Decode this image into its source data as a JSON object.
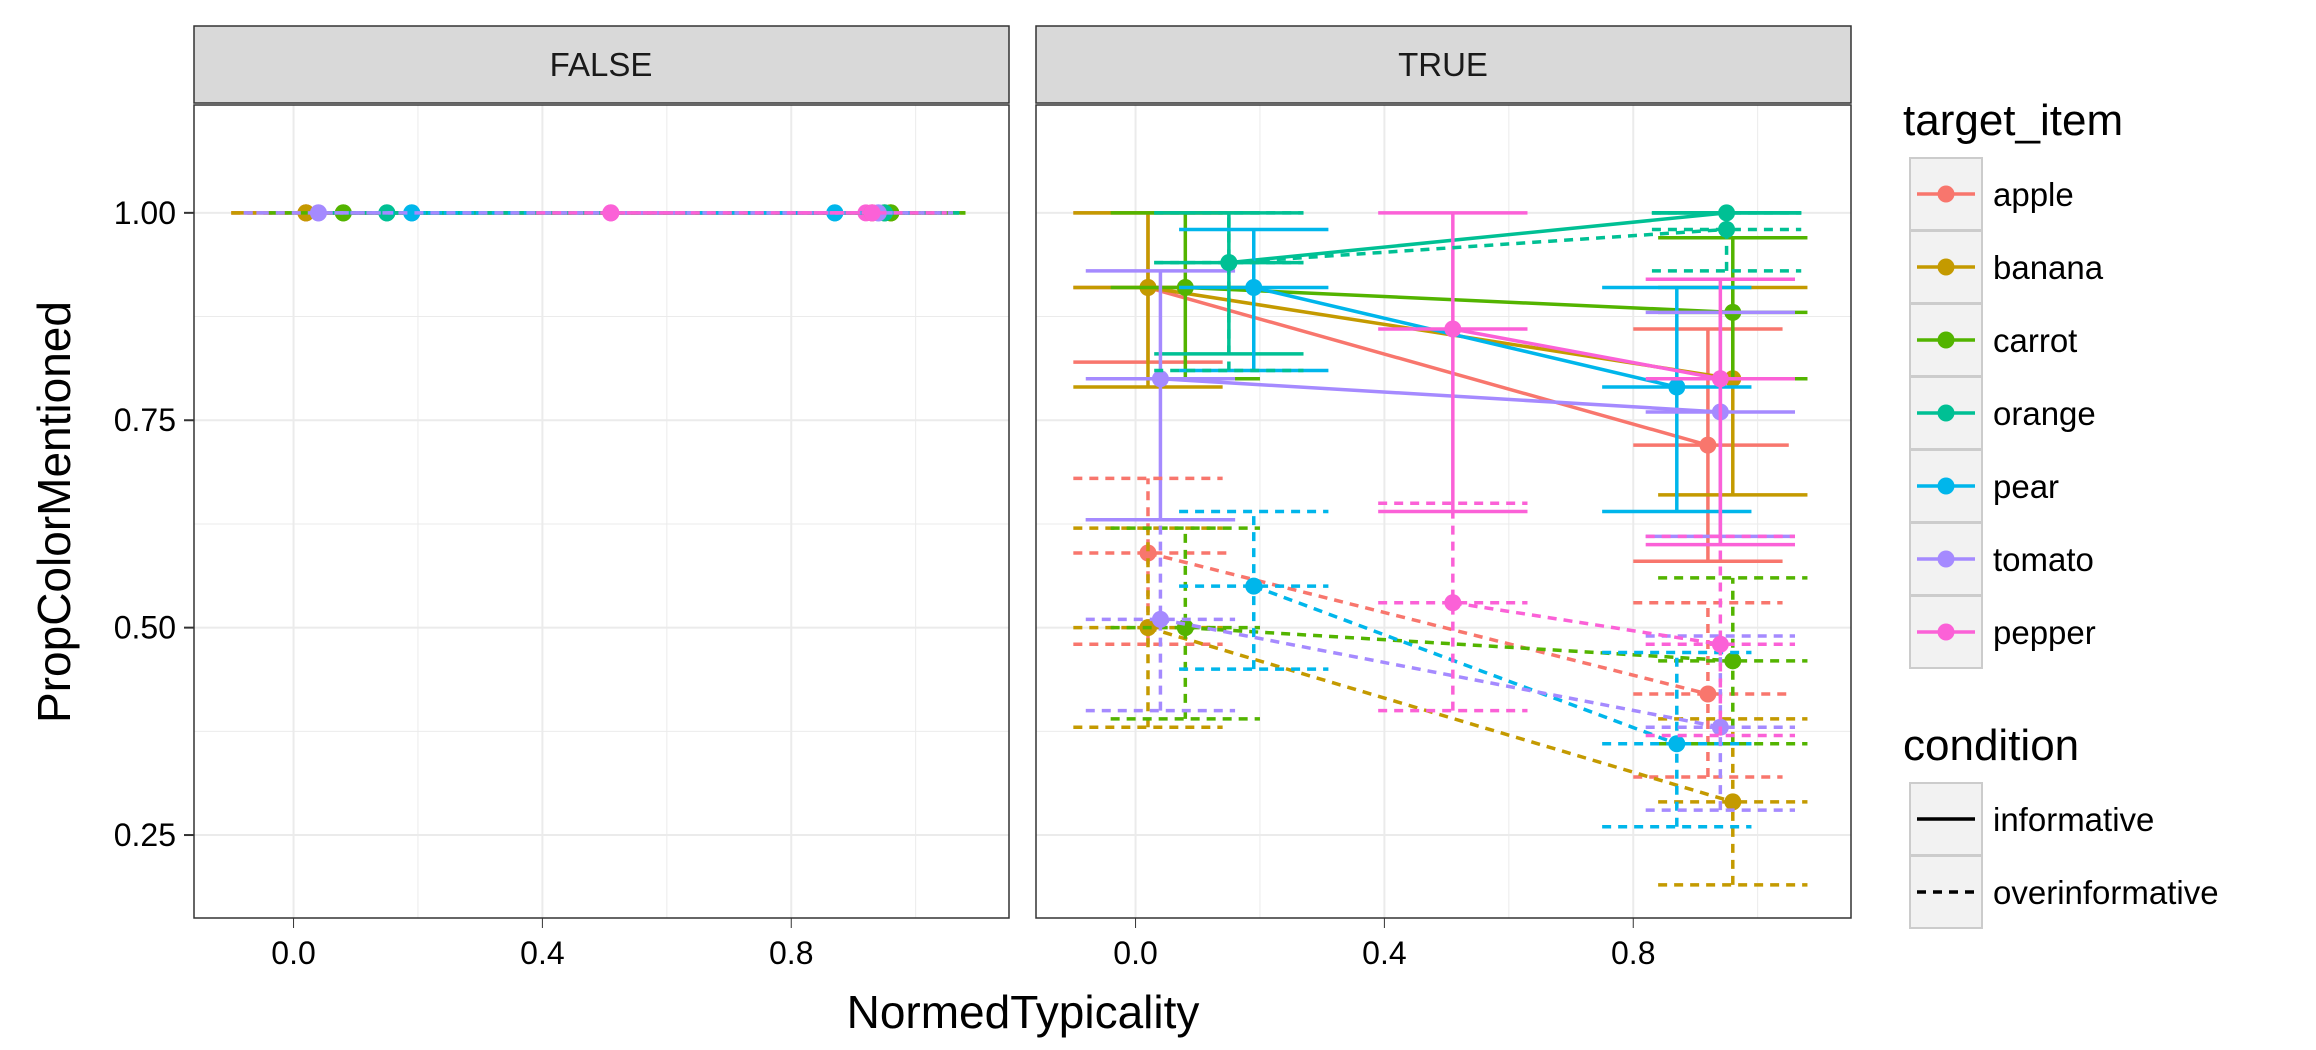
{
  "chart_data": {
    "type": "line",
    "facet_variable": "",
    "facets": [
      "FALSE",
      "TRUE"
    ],
    "xlabel": "NormedTypicality",
    "ylabel": "PropColorMentioned",
    "x_ticks": [
      "0.0",
      "0.4",
      "0.8"
    ],
    "y_ticks": [
      "0.25",
      "0.50",
      "0.75",
      "1.00"
    ],
    "xlim": [
      -0.16,
      1.15
    ],
    "ylim": [
      0.15,
      1.13
    ],
    "grid": true,
    "legend_placement": "right",
    "colors": {
      "apple": "#F8766D",
      "banana": "#C49A00",
      "carrot": "#53B400",
      "orange": "#00C094",
      "pear": "#00B6EB",
      "tomato": "#A58AFF",
      "pepper": "#FB61D7",
      "panel_background": "#FFFFFF",
      "grid": "#EBEBEB",
      "strip": "#D9D9D9",
      "border": "#333333"
    },
    "legend": {
      "target_item": {
        "title": "target_item",
        "entries": [
          "apple",
          "banana",
          "carrot",
          "orange",
          "pear",
          "tomato",
          "pepper"
        ]
      },
      "condition": {
        "title": "condition",
        "entries": [
          "informative",
          "overinformative"
        ]
      }
    },
    "series": [
      {
        "facet": "FALSE",
        "item": "apple",
        "condition": "informative",
        "points": [
          {
            "x": 0.02,
            "y": 1.0,
            "xmin": -0.1,
            "xmax": 0.14
          },
          {
            "x": 0.93,
            "y": 1.0,
            "xmin": 0.81,
            "xmax": 1.05
          }
        ]
      },
      {
        "facet": "FALSE",
        "item": "banana",
        "condition": "informative",
        "points": [
          {
            "x": 0.02,
            "y": 1.0,
            "xmin": -0.1,
            "xmax": 0.14
          },
          {
            "x": 0.95,
            "y": 1.0,
            "xmin": 0.83,
            "xmax": 1.07
          }
        ]
      },
      {
        "facet": "FALSE",
        "item": "carrot",
        "condition": "informative",
        "points": [
          {
            "x": 0.08,
            "y": 1.0,
            "xmin": -0.04,
            "xmax": 0.2
          },
          {
            "x": 0.96,
            "y": 1.0,
            "xmin": 0.84,
            "xmax": 1.08
          }
        ]
      },
      {
        "facet": "FALSE",
        "item": "orange",
        "condition": "informative",
        "points": [
          {
            "x": 0.15,
            "y": 1.0,
            "xmin": 0.03,
            "xmax": 0.27
          },
          {
            "x": 0.95,
            "y": 1.0,
            "xmin": 0.83,
            "xmax": 1.07
          }
        ]
      },
      {
        "facet": "FALSE",
        "item": "pear",
        "condition": "informative",
        "points": [
          {
            "x": 0.19,
            "y": 1.0,
            "xmin": 0.07,
            "xmax": 0.31
          },
          {
            "x": 0.87,
            "y": 1.0,
            "xmin": 0.75,
            "xmax": 0.99
          }
        ]
      },
      {
        "facet": "FALSE",
        "item": "tomato",
        "condition": "informative",
        "points": [
          {
            "x": 0.04,
            "y": 1.0,
            "xmin": -0.08,
            "xmax": 0.16
          },
          {
            "x": 0.94,
            "y": 1.0,
            "xmin": 0.82,
            "xmax": 1.06
          }
        ]
      },
      {
        "facet": "FALSE",
        "item": "pepper",
        "condition": "informative",
        "points": [
          {
            "x": 0.51,
            "y": 1.0,
            "xmin": 0.39,
            "xmax": 0.63
          },
          {
            "x": 0.92,
            "y": 1.0,
            "xmin": 0.8,
            "xmax": 1.04
          }
        ]
      },
      {
        "facet": "FALSE",
        "item": "apple",
        "condition": "overinformative",
        "points": [
          {
            "x": 0.02,
            "y": 1.0,
            "xmin": -0.1,
            "xmax": 0.14
          },
          {
            "x": 0.93,
            "y": 1.0,
            "xmin": 0.81,
            "xmax": 1.05
          }
        ]
      },
      {
        "facet": "FALSE",
        "item": "banana",
        "condition": "overinformative",
        "points": [
          {
            "x": 0.02,
            "y": 1.0,
            "xmin": -0.1,
            "xmax": 0.14
          },
          {
            "x": 0.96,
            "y": 1.0,
            "xmin": 0.84,
            "xmax": 1.08
          }
        ]
      },
      {
        "facet": "FALSE",
        "item": "carrot",
        "condition": "overinformative",
        "points": [
          {
            "x": 0.08,
            "y": 1.0,
            "xmin": -0.04,
            "xmax": 0.2
          },
          {
            "x": 0.96,
            "y": 1.0,
            "xmin": 0.84,
            "xmax": 1.08
          }
        ]
      },
      {
        "facet": "FALSE",
        "item": "orange",
        "condition": "overinformative",
        "points": [
          {
            "x": 0.15,
            "y": 1.0,
            "xmin": 0.03,
            "xmax": 0.27
          },
          {
            "x": 0.95,
            "y": 1.0,
            "xmin": 0.83,
            "xmax": 1.07
          }
        ]
      },
      {
        "facet": "FALSE",
        "item": "pear",
        "condition": "overinformative",
        "points": [
          {
            "x": 0.19,
            "y": 1.0,
            "xmin": 0.07,
            "xmax": 0.31
          },
          {
            "x": 0.87,
            "y": 1.0,
            "xmin": 0.75,
            "xmax": 0.99
          }
        ]
      },
      {
        "facet": "FALSE",
        "item": "tomato",
        "condition": "overinformative",
        "points": [
          {
            "x": 0.04,
            "y": 1.0,
            "xmin": -0.08,
            "xmax": 0.16
          },
          {
            "x": 0.94,
            "y": 1.0,
            "xmin": 0.82,
            "xmax": 1.06
          }
        ]
      },
      {
        "facet": "FALSE",
        "item": "pepper",
        "condition": "overinformative",
        "points": [
          {
            "x": 0.51,
            "y": 1.0,
            "xmin": 0.39,
            "xmax": 0.63
          },
          {
            "x": 0.93,
            "y": 1.0,
            "xmin": 0.81,
            "xmax": 1.05
          }
        ]
      },
      {
        "facet": "TRUE",
        "item": "apple",
        "condition": "informative",
        "points": [
          {
            "x": 0.02,
            "y": 0.91,
            "ymin": 0.82,
            "ymax": 1.0,
            "xmin": -0.1,
            "xmax": 0.15
          },
          {
            "x": 0.92,
            "y": 0.72,
            "ymin": 0.58,
            "ymax": 0.86,
            "xmin": 0.8,
            "xmax": 1.05
          }
        ]
      },
      {
        "facet": "TRUE",
        "item": "banana",
        "condition": "informative",
        "points": [
          {
            "x": 0.02,
            "y": 0.91,
            "ymin": 0.79,
            "ymax": 1.0,
            "xmin": -0.1,
            "xmax": 0.14
          },
          {
            "x": 0.96,
            "y": 0.8,
            "ymin": 0.66,
            "ymax": 0.91,
            "xmin": 0.84,
            "xmax": 1.08
          }
        ]
      },
      {
        "facet": "TRUE",
        "item": "carrot",
        "condition": "informative",
        "points": [
          {
            "x": 0.08,
            "y": 0.91,
            "ymin": 0.8,
            "ymax": 1.0,
            "xmin": -0.04,
            "xmax": 0.2
          },
          {
            "x": 0.96,
            "y": 0.88,
            "ymin": 0.8,
            "ymax": 0.97,
            "xmin": 0.84,
            "xmax": 1.08
          }
        ]
      },
      {
        "facet": "TRUE",
        "item": "orange",
        "condition": "informative",
        "points": [
          {
            "x": 0.15,
            "y": 0.94,
            "ymin": 0.83,
            "ymax": 1.0,
            "xmin": 0.03,
            "xmax": 0.27
          },
          {
            "x": 0.95,
            "y": 1.0,
            "ymin": 1.0,
            "ymax": 1.0,
            "xmin": 0.83,
            "xmax": 1.07
          }
        ]
      },
      {
        "facet": "TRUE",
        "item": "pear",
        "condition": "informative",
        "points": [
          {
            "x": 0.19,
            "y": 0.91,
            "ymin": 0.81,
            "ymax": 0.98,
            "xmin": 0.07,
            "xmax": 0.31
          },
          {
            "x": 0.87,
            "y": 0.79,
            "ymin": 0.64,
            "ymax": 0.91,
            "xmin": 0.75,
            "xmax": 0.99
          }
        ]
      },
      {
        "facet": "TRUE",
        "item": "tomato",
        "condition": "informative",
        "points": [
          {
            "x": 0.04,
            "y": 0.8,
            "ymin": 0.63,
            "ymax": 0.93,
            "xmin": -0.08,
            "xmax": 0.16
          },
          {
            "x": 0.94,
            "y": 0.76,
            "ymin": 0.61,
            "ymax": 0.88,
            "xmin": 0.82,
            "xmax": 1.06
          }
        ]
      },
      {
        "facet": "TRUE",
        "item": "pepper",
        "condition": "informative",
        "points": [
          {
            "x": 0.51,
            "y": 0.86,
            "ymin": 0.64,
            "ymax": 1.0,
            "xmin": 0.39,
            "xmax": 0.63
          },
          {
            "x": 0.94,
            "y": 0.8,
            "ymin": 0.6,
            "ymax": 0.92,
            "xmin": 0.82,
            "xmax": 1.06
          }
        ]
      },
      {
        "facet": "TRUE",
        "item": "apple",
        "condition": "overinformative",
        "points": [
          {
            "x": 0.02,
            "y": 0.59,
            "ymin": 0.48,
            "ymax": 0.68,
            "xmin": -0.1,
            "xmax": 0.15
          },
          {
            "x": 0.92,
            "y": 0.42,
            "ymin": 0.32,
            "ymax": 0.53,
            "xmin": 0.8,
            "xmax": 1.05
          }
        ]
      },
      {
        "facet": "TRUE",
        "item": "banana",
        "condition": "overinformative",
        "points": [
          {
            "x": 0.02,
            "y": 0.5,
            "ymin": 0.38,
            "ymax": 0.62,
            "xmin": -0.1,
            "xmax": 0.14
          },
          {
            "x": 0.96,
            "y": 0.29,
            "ymin": 0.19,
            "ymax": 0.39,
            "xmin": 0.84,
            "xmax": 1.08
          }
        ]
      },
      {
        "facet": "TRUE",
        "item": "carrot",
        "condition": "overinformative",
        "points": [
          {
            "x": 0.08,
            "y": 0.5,
            "ymin": 0.39,
            "ymax": 0.62,
            "xmin": -0.04,
            "xmax": 0.2
          },
          {
            "x": 0.96,
            "y": 0.46,
            "ymin": 0.36,
            "ymax": 0.56,
            "xmin": 0.84,
            "xmax": 1.08
          }
        ]
      },
      {
        "facet": "TRUE",
        "item": "orange",
        "condition": "overinformative",
        "points": [
          {
            "x": 0.15,
            "y": 0.94,
            "ymin": 0.81,
            "ymax": 1.0,
            "xmin": 0.03,
            "xmax": 0.27
          },
          {
            "x": 0.95,
            "y": 0.98,
            "ymin": 0.93,
            "ymax": 1.0,
            "xmin": 0.83,
            "xmax": 1.07
          }
        ]
      },
      {
        "facet": "TRUE",
        "item": "pear",
        "condition": "overinformative",
        "points": [
          {
            "x": 0.19,
            "y": 0.55,
            "ymin": 0.45,
            "ymax": 0.64,
            "xmin": 0.07,
            "xmax": 0.31
          },
          {
            "x": 0.87,
            "y": 0.36,
            "ymin": 0.26,
            "ymax": 0.47,
            "xmin": 0.75,
            "xmax": 0.99
          }
        ]
      },
      {
        "facet": "TRUE",
        "item": "tomato",
        "condition": "overinformative",
        "points": [
          {
            "x": 0.04,
            "y": 0.51,
            "ymin": 0.4,
            "ymax": 0.63,
            "xmin": -0.08,
            "xmax": 0.16
          },
          {
            "x": 0.94,
            "y": 0.38,
            "ymin": 0.28,
            "ymax": 0.49,
            "xmin": 0.82,
            "xmax": 1.06
          }
        ]
      },
      {
        "facet": "TRUE",
        "item": "pepper",
        "condition": "overinformative",
        "points": [
          {
            "x": 0.51,
            "y": 0.53,
            "ymin": 0.4,
            "ymax": 0.65,
            "xmin": 0.39,
            "xmax": 0.63
          },
          {
            "x": 0.94,
            "y": 0.48,
            "ymin": 0.37,
            "ymax": 0.61,
            "xmin": 0.82,
            "xmax": 1.06
          }
        ]
      }
    ]
  }
}
